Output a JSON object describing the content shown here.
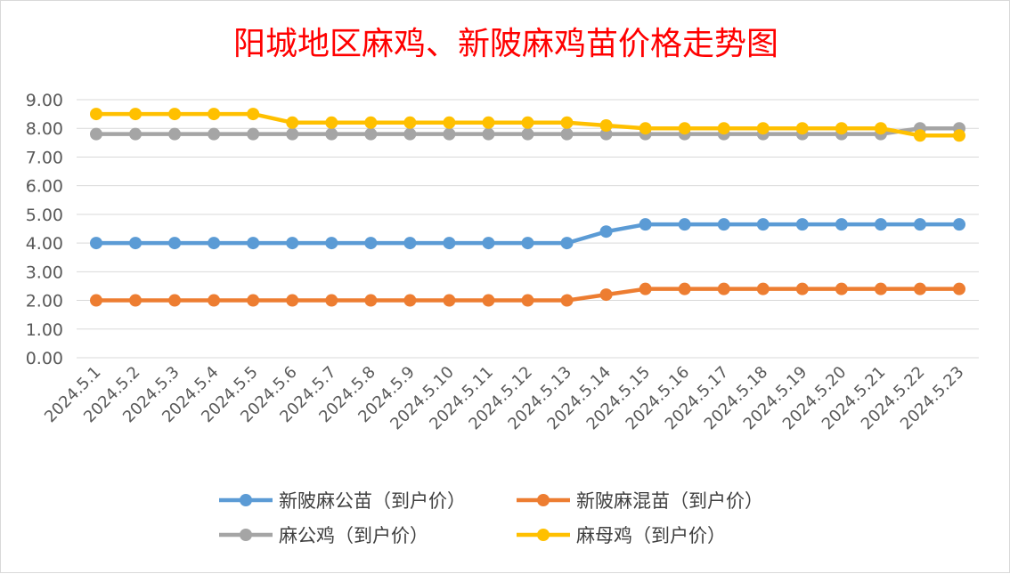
{
  "chart_data": {
    "type": "line",
    "title": "阳城地区麻鸡、新陂麻鸡苗价格走势图",
    "xlabel": "",
    "ylabel": "",
    "x": [
      "2024.5.1",
      "2024.5.2",
      "2024.5.3",
      "2024.5.4",
      "2024.5.5",
      "2024.5.6",
      "2024.5.7",
      "2024.5.8",
      "2024.5.9",
      "2024.5.10",
      "2024.5.11",
      "2024.5.12",
      "2024.5.13",
      "2024.5.14",
      "2024.5.15",
      "2024.5.16",
      "2024.5.17",
      "2024.5.18",
      "2024.5.19",
      "2024.5.20",
      "2024.5.21",
      "2024.5.22",
      "2024.5.23"
    ],
    "ylim": [
      0,
      9
    ],
    "y_ticks": [
      "0.00",
      "1.00",
      "2.00",
      "3.00",
      "4.00",
      "5.00",
      "6.00",
      "7.00",
      "8.00",
      "9.00"
    ],
    "grid": "horizontal",
    "legend_position": "bottom",
    "series": [
      {
        "name": "新陂麻公苗（到户价）",
        "color": "#5b9bd5",
        "values": [
          4.0,
          4.0,
          4.0,
          4.0,
          4.0,
          4.0,
          4.0,
          4.0,
          4.0,
          4.0,
          4.0,
          4.0,
          4.0,
          4.4,
          4.65,
          4.65,
          4.65,
          4.65,
          4.65,
          4.65,
          4.65,
          4.65,
          4.65
        ]
      },
      {
        "name": "新陂麻混苗（到户价）",
        "color": "#ed7d31",
        "values": [
          2.0,
          2.0,
          2.0,
          2.0,
          2.0,
          2.0,
          2.0,
          2.0,
          2.0,
          2.0,
          2.0,
          2.0,
          2.0,
          2.2,
          2.4,
          2.4,
          2.4,
          2.4,
          2.4,
          2.4,
          2.4,
          2.4,
          2.4
        ]
      },
      {
        "name": "麻公鸡（到户价）",
        "color": "#a5a5a5",
        "values": [
          7.8,
          7.8,
          7.8,
          7.8,
          7.8,
          7.8,
          7.8,
          7.8,
          7.8,
          7.8,
          7.8,
          7.8,
          7.8,
          7.8,
          7.8,
          7.8,
          7.8,
          7.8,
          7.8,
          7.8,
          7.8,
          8.0,
          8.0
        ]
      },
      {
        "name": "麻母鸡（到户价）",
        "color": "#ffc000",
        "values": [
          8.5,
          8.5,
          8.5,
          8.5,
          8.5,
          8.2,
          8.2,
          8.2,
          8.2,
          8.2,
          8.2,
          8.2,
          8.2,
          8.1,
          8.0,
          8.0,
          8.0,
          8.0,
          8.0,
          8.0,
          8.0,
          7.75,
          7.75
        ]
      }
    ],
    "draw_order": [
      2,
      3,
      0,
      1
    ]
  }
}
